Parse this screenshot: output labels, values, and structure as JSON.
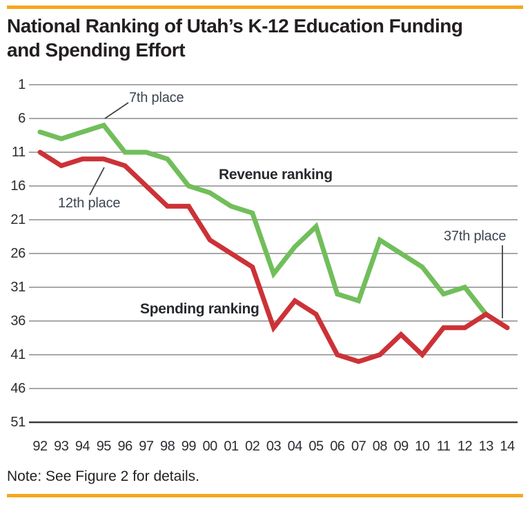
{
  "header": {
    "title_line1": "National Ranking of Utah’s K-12 Education Funding",
    "title_line2": "and Spending Effort"
  },
  "note": {
    "text": "Note: See Figure 2 for details."
  },
  "colors": {
    "accent_rule": "#F5A71F",
    "revenue_green": "#71BE5B",
    "spending_red": "#CC3237",
    "gridline": "#9B9B9B",
    "axis_line": "#3A3A3A",
    "leader_line": "#3F4347",
    "title_text": "#231F20",
    "annotation_text": "#3B4450"
  },
  "chart_data": {
    "type": "line",
    "title": "National Ranking of Utah’s K-12 Education Funding and Spending Effort",
    "x_labels": [
      "92",
      "93",
      "94",
      "95",
      "96",
      "97",
      "98",
      "99",
      "00",
      "01",
      "02",
      "03",
      "04",
      "05",
      "06",
      "07",
      "08",
      "09",
      "10",
      "11",
      "12",
      "13",
      "14"
    ],
    "y_ticks": [
      1,
      6,
      11,
      16,
      21,
      26,
      31,
      36,
      41,
      46,
      51
    ],
    "y_axis": {
      "min": 1,
      "max": 51,
      "inverted": true,
      "meaning": "national rank (1 = highest)"
    },
    "grid": "horizontal",
    "legend_position": "inline-labels",
    "series": [
      {
        "name": "Revenue ranking",
        "color": "#71BE5B",
        "values": [
          8,
          9,
          8,
          7,
          11,
          11,
          12,
          16,
          17,
          19,
          20,
          29,
          25,
          22,
          32,
          33,
          24,
          26,
          28,
          32,
          31,
          35,
          37
        ]
      },
      {
        "name": "Spending ranking",
        "color": "#CC3237",
        "values": [
          11,
          13,
          12,
          12,
          13,
          16,
          19,
          19,
          24,
          26,
          28,
          37,
          33,
          35,
          41,
          42,
          41,
          38,
          41,
          37,
          37,
          35,
          37
        ]
      }
    ],
    "annotations": [
      {
        "text": "7th place",
        "target_series": "Revenue ranking",
        "target_year": "95",
        "target_value": 7
      },
      {
        "text": "12th place",
        "target_series": "Spending ranking",
        "target_year": "95",
        "target_value": 12
      },
      {
        "text": "37th place",
        "target_series": "Revenue ranking & Spending ranking",
        "target_year": "14",
        "target_value": 37
      }
    ]
  }
}
